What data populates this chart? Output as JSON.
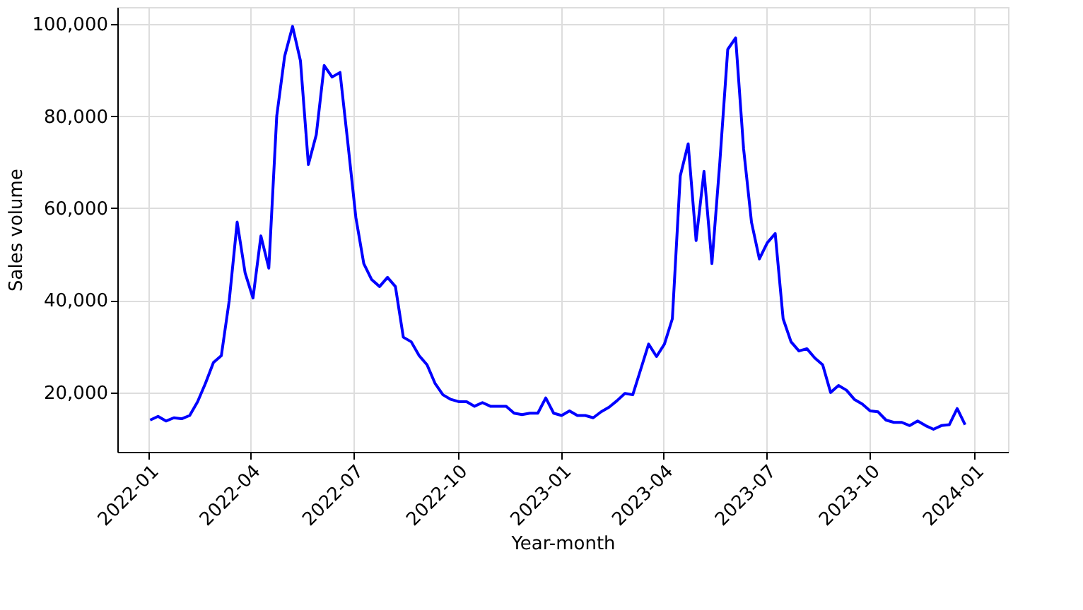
{
  "chart_data": {
    "type": "line",
    "xlabel": "Year-month",
    "ylabel": "Sales volume",
    "x": [
      "2022-01-02",
      "2022-01-09",
      "2022-01-16",
      "2022-01-23",
      "2022-01-30",
      "2022-02-06",
      "2022-02-13",
      "2022-02-20",
      "2022-02-27",
      "2022-03-06",
      "2022-03-13",
      "2022-03-20",
      "2022-03-27",
      "2022-04-03",
      "2022-04-10",
      "2022-04-17",
      "2022-04-24",
      "2022-05-01",
      "2022-05-08",
      "2022-05-15",
      "2022-05-22",
      "2022-05-29",
      "2022-06-05",
      "2022-06-12",
      "2022-06-19",
      "2022-06-26",
      "2022-07-03",
      "2022-07-10",
      "2022-07-17",
      "2022-07-24",
      "2022-07-31",
      "2022-08-07",
      "2022-08-14",
      "2022-08-21",
      "2022-08-28",
      "2022-09-04",
      "2022-09-11",
      "2022-09-18",
      "2022-09-25",
      "2022-10-02",
      "2022-10-09",
      "2022-10-16",
      "2022-10-23",
      "2022-10-30",
      "2022-11-06",
      "2022-11-13",
      "2022-11-20",
      "2022-11-27",
      "2022-12-04",
      "2022-12-11",
      "2022-12-18",
      "2022-12-25",
      "2023-01-01",
      "2023-01-08",
      "2023-01-15",
      "2023-01-22",
      "2023-01-29",
      "2023-02-05",
      "2023-02-12",
      "2023-02-19",
      "2023-02-26",
      "2023-03-05",
      "2023-03-12",
      "2023-03-19",
      "2023-03-26",
      "2023-04-02",
      "2023-04-09",
      "2023-04-16",
      "2023-04-23",
      "2023-04-30",
      "2023-05-07",
      "2023-05-14",
      "2023-05-21",
      "2023-05-28",
      "2023-06-04",
      "2023-06-11",
      "2023-06-18",
      "2023-06-25",
      "2023-07-02",
      "2023-07-09",
      "2023-07-16",
      "2023-07-23",
      "2023-07-30",
      "2023-08-06",
      "2023-08-13",
      "2023-08-20",
      "2023-08-27",
      "2023-09-03",
      "2023-09-10",
      "2023-09-17",
      "2023-09-24",
      "2023-10-01",
      "2023-10-08",
      "2023-10-15",
      "2023-10-22",
      "2023-10-29",
      "2023-11-05",
      "2023-11-12",
      "2023-11-19",
      "2023-11-26",
      "2023-12-03",
      "2023-12-10",
      "2023-12-17",
      "2023-12-24"
    ],
    "series": [
      {
        "color": "#0000ff",
        "values": [
          14000,
          14800,
          13800,
          14500,
          14300,
          15000,
          18000,
          22000,
          26500,
          28000,
          40000,
          57000,
          46000,
          40500,
          54000,
          47000,
          80000,
          93000,
          99500,
          92000,
          69500,
          76000,
          91000,
          88500,
          89500,
          74000,
          58000,
          48000,
          44500,
          43000,
          45000,
          43000,
          32000,
          31000,
          28000,
          26000,
          22000,
          19500,
          18500,
          18000,
          18000,
          17000,
          17800,
          17000,
          17000,
          17000,
          15500,
          15200,
          15500,
          15500,
          18800,
          15500,
          15000,
          16000,
          15000,
          15000,
          14500,
          15800,
          16800,
          18200,
          19800,
          19500,
          25000,
          30500,
          27800,
          30500,
          36000,
          67000,
          74000,
          53000,
          68000,
          48000,
          70000,
          94500,
          97000,
          73000,
          57000,
          49000,
          52500,
          54500,
          36000,
          31000,
          29000,
          29500,
          27500,
          26000,
          20000,
          21500,
          20500,
          18500,
          17500,
          16000,
          15800,
          14000,
          13500,
          13500,
          12800,
          13800,
          12800,
          12000,
          12800,
          13000,
          16500,
          13000
        ]
      }
    ],
    "xlim": [
      "2021-12-04",
      "2024-01-31"
    ],
    "xticks": [
      "2022-01",
      "2022-04",
      "2022-07",
      "2022-10",
      "2023-01",
      "2023-04",
      "2023-07",
      "2023-10",
      "2024-01"
    ],
    "ylim": [
      7100,
      103700
    ],
    "yticks": [
      {
        "value": 20000,
        "label": "20,000"
      },
      {
        "value": 40000,
        "label": "40,000"
      },
      {
        "value": 60000,
        "label": "60,000"
      },
      {
        "value": 80000,
        "label": "80,000"
      },
      {
        "value": 100000,
        "label": "100,000"
      }
    ],
    "grid": true,
    "line_style": "solid",
    "marker": "none"
  }
}
